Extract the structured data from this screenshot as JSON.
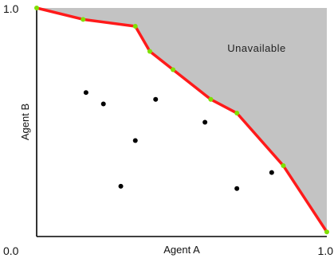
{
  "chart_data": {
    "type": "scatter",
    "title": "",
    "xlabel": "Agent A",
    "ylabel": "Agent B",
    "xlim": [
      0,
      1
    ],
    "ylim": [
      0,
      1
    ],
    "x_tick_labels": [
      "0.0",
      "1.0"
    ],
    "y_tick_labels": [
      "1.0",
      "0.0"
    ],
    "grid": false,
    "region_label": "Unavailable",
    "colors": {
      "frontier_line": "#ff1a1a",
      "frontier_points": "#7fe000",
      "unavailable_region": "#c3c3c3",
      "points": "#000000",
      "axes": "#000000"
    },
    "frontier": {
      "x": [
        0.0,
        0.16,
        0.34,
        0.39,
        0.47,
        0.6,
        0.69,
        0.85,
        1.0
      ],
      "y": [
        1.0,
        0.95,
        0.92,
        0.81,
        0.73,
        0.6,
        0.54,
        0.31,
        0.02
      ]
    },
    "points": {
      "x": [
        0.17,
        0.23,
        0.41,
        0.34,
        0.58,
        0.29,
        0.69,
        0.81
      ],
      "y": [
        0.63,
        0.58,
        0.6,
        0.42,
        0.5,
        0.22,
        0.21,
        0.28
      ]
    }
  }
}
